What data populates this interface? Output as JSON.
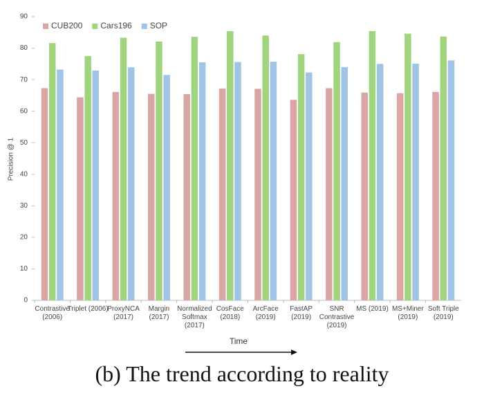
{
  "chart_data": {
    "type": "bar",
    "categories": [
      "Contrastive (2006)",
      "Triplet (2006)",
      "ProxyNCA (2017)",
      "Margin (2017)",
      "Normalized Softmax (2017)",
      "CosFace (2018)",
      "ArcFace (2019)",
      "FastAP (2019)",
      "SNR Contrastive (2019)",
      "MS (2019)",
      "MS+Miner (2019)",
      "Soft Triple (2019)"
    ],
    "series": [
      {
        "name": "CUB200",
        "color": "#d9a5a5",
        "values": [
          67.3,
          64.4,
          66.1,
          65.5,
          65.4,
          67.2,
          67.1,
          63.6,
          67.3,
          65.9,
          65.7,
          66.1
        ]
      },
      {
        "name": "Cars196",
        "color": "#a0d47f",
        "values": [
          81.6,
          77.5,
          83.3,
          82.1,
          83.6,
          85.4,
          84.0,
          78.1,
          81.9,
          85.4,
          84.6,
          83.7
        ]
      },
      {
        "name": "SOP",
        "color": "#a0c4e6",
        "values": [
          73.2,
          72.9,
          73.9,
          71.5,
          75.5,
          75.6,
          75.7,
          72.3,
          74.0,
          75.0,
          75.1,
          76.1
        ]
      }
    ],
    "y_label": "Precision @ 1",
    "x_label": "Time",
    "ylim": [
      0,
      90
    ],
    "yticks": [
      0,
      10,
      20,
      30,
      40,
      50,
      60,
      70,
      80,
      90
    ],
    "legend": "top-left"
  },
  "caption": "(b) The trend according to reality"
}
